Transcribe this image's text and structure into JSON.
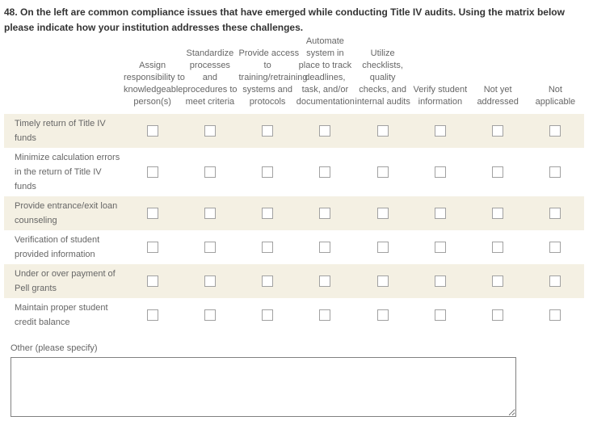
{
  "question": {
    "title": "48. On the left are common compliance issues that have emerged while conducting Title IV audits. Using the matrix below please indicate how your institution addresses these challenges."
  },
  "matrix": {
    "column_headers": [
      "Assign\nresponsibility to\nknowledgeable\nperson(s)",
      "Standardize\nprocesses\nand\nprocedures to\nmeet criteria",
      "Provide access\nto\ntraining/retraining\nsystems and\nprotocols",
      "Automate\nsystem in\nplace to track\ndeadlines,\ntask, and/or\ndocumentation",
      "Utilize\nchecklists,\nquality\nchecks, and\ninternal audits",
      "Verify student\ninformation",
      "Not yet\naddressed",
      "Not\napplicable"
    ],
    "rows": [
      {
        "label": "Timely return of Title IV\nfunds",
        "shaded": true,
        "checkboxes": [
          false,
          false,
          false,
          false,
          false,
          false,
          false,
          false
        ]
      },
      {
        "label": "Minimize calculation errors\nin the return of Title IV\nfunds",
        "shaded": false,
        "checkboxes": [
          false,
          false,
          false,
          false,
          false,
          false,
          false,
          false
        ]
      },
      {
        "label": "Provide entrance/exit loan\ncounseling",
        "shaded": true,
        "checkboxes": [
          false,
          false,
          false,
          false,
          false,
          false,
          false,
          false
        ]
      },
      {
        "label": "Verification of student\nprovided information",
        "shaded": false,
        "checkboxes": [
          false,
          false,
          false,
          false,
          false,
          false,
          false,
          false
        ]
      },
      {
        "label": "Under or over payment of\nPell grants",
        "shaded": true,
        "checkboxes": [
          false,
          false,
          false,
          false,
          false,
          false,
          false,
          false
        ]
      },
      {
        "label": "Maintain proper student\ncredit balance",
        "shaded": false,
        "checkboxes": [
          false,
          false,
          false,
          false,
          false,
          false,
          false,
          false
        ]
      }
    ]
  },
  "other": {
    "label": "Other (please specify)",
    "value": "",
    "placeholder": ""
  },
  "colors": {
    "row_shade": "#f4f0e3",
    "checkbox_border": "#a1a1a1",
    "muted_text": "#666666",
    "title_text": "#333333",
    "textarea_border": "#818181"
  }
}
